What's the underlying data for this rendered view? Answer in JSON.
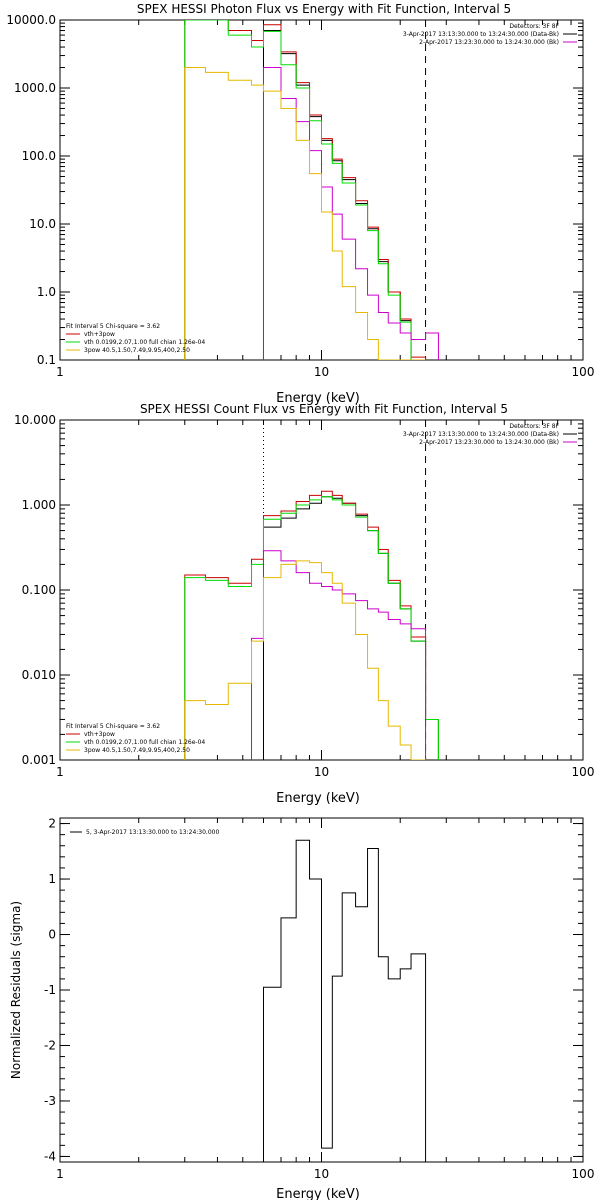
{
  "colors": {
    "black": "#000000",
    "red": "#cc0000",
    "green": "#00dd00",
    "magenta": "#cc00cc",
    "yellow": "#e6b800"
  },
  "chart_data": [
    {
      "type": "line",
      "title": "SPEX HESSI Photon Flux vs Energy with Fit Function, Interval 5",
      "xlabel": "Energy (keV)",
      "ylabel": "",
      "xscale": "log",
      "yscale": "log",
      "xlim": [
        1,
        100
      ],
      "ylim": [
        0.1,
        10000
      ],
      "xticks": [
        {
          "v": 1,
          "label": "1"
        },
        {
          "v": 10,
          "label": "10"
        },
        {
          "v": 100,
          "label": "100"
        }
      ],
      "yticks": [
        {
          "v": 0.1,
          "label": "0.1"
        },
        {
          "v": 1,
          "label": "1.0"
        },
        {
          "v": 10,
          "label": "10.0"
        },
        {
          "v": 100,
          "label": "100.0"
        },
        {
          "v": 1000,
          "label": "1000.0"
        },
        {
          "v": 10000,
          "label": "10000.0"
        }
      ],
      "vlines": [
        {
          "x": 6,
          "style": "dotted",
          "color": "black"
        },
        {
          "x": 25,
          "style": "dashed",
          "color": "black"
        }
      ],
      "legend_top_right": [
        {
          "text": "Detectors: 3F 8F",
          "color": "black"
        },
        {
          "text": "3-Apr-2017 13:13:30.000 to 13:24:30.000 (Data-Bk)",
          "color": "black"
        },
        {
          "text": "2-Apr-2017 13:23:30.000 to 13:24:30.000 (Bk)",
          "color": "magenta"
        }
      ],
      "legend_bottom_left": [
        {
          "text": "Fit Interval 5   Chi-square = 3.62",
          "color": "black"
        },
        {
          "text": "vth+3pow",
          "color": "red"
        },
        {
          "text": "vth 0.0199,2.07,1.00  full chian 1.26e-04",
          "color": "green"
        },
        {
          "text": "3pow 40.5,1.50,7.49,9.95,400,2.50",
          "color": "yellow"
        }
      ],
      "edges": [
        3,
        3.6,
        4.4,
        5.4,
        6,
        7,
        8,
        9,
        10,
        11,
        12,
        13.5,
        15,
        16.5,
        18,
        20,
        22,
        25,
        28
      ],
      "series": [
        {
          "color": "black",
          "values": [
            null,
            null,
            null,
            null,
            7000,
            3200,
            1100,
            380,
            170,
            85,
            45,
            20,
            8.5,
            2.8,
            1.0,
            0.38,
            0.095,
            null
          ]
        },
        {
          "color": "red",
          "values": [
            10000,
            10000,
            7000,
            5000,
            8500,
            3400,
            1200,
            400,
            180,
            90,
            48,
            22,
            9,
            3.0,
            1.0,
            0.4,
            0.11,
            null
          ]
        },
        {
          "color": "green",
          "values": [
            10000,
            10000,
            6000,
            4000,
            6800,
            2200,
            1000,
            330,
            150,
            78,
            40,
            19,
            8,
            2.6,
            0.9,
            0.36,
            0.1,
            null
          ]
        },
        {
          "color": "magenta",
          "values": [
            null,
            null,
            null,
            null,
            2000,
            700,
            320,
            120,
            35,
            14,
            6,
            2.2,
            0.9,
            0.5,
            0.35,
            0.25,
            0.2,
            0.25
          ]
        },
        {
          "color": "yellow",
          "values": [
            2000,
            1700,
            1300,
            1100,
            900,
            500,
            170,
            55,
            15,
            4,
            1.2,
            0.5,
            0.2,
            0.1,
            0.1,
            0.1,
            0.1,
            null
          ]
        }
      ]
    },
    {
      "type": "line",
      "title": "SPEX HESSI Count Flux vs Energy with Fit Function, Interval 5",
      "xlabel": "Energy (keV)",
      "ylabel": "",
      "xscale": "log",
      "yscale": "log",
      "xlim": [
        1,
        100
      ],
      "ylim": [
        0.001,
        10
      ],
      "xticks": [
        {
          "v": 1,
          "label": "1"
        },
        {
          "v": 10,
          "label": "10"
        },
        {
          "v": 100,
          "label": "100"
        }
      ],
      "yticks": [
        {
          "v": 0.001,
          "label": "0.001"
        },
        {
          "v": 0.01,
          "label": "0.010"
        },
        {
          "v": 0.1,
          "label": "0.100"
        },
        {
          "v": 1,
          "label": "1.000"
        },
        {
          "v": 10,
          "label": "10.000"
        }
      ],
      "vlines": [
        {
          "x": 6,
          "style": "dotted",
          "color": "black"
        },
        {
          "x": 25,
          "style": "dashed",
          "color": "black"
        }
      ],
      "legend_top_right": [
        {
          "text": "Detectors: 3F 8F",
          "color": "black"
        },
        {
          "text": "3-Apr-2017 13:13:30.000 to 13:24:30.000 (Data-Bk)",
          "color": "black"
        },
        {
          "text": "2-Apr-2017 13:23:30.000 to 13:24:30.000 (Bk)",
          "color": "magenta"
        }
      ],
      "legend_bottom_left": [
        {
          "text": "Fit Interval 5   Chi-square = 3.62",
          "color": "black"
        },
        {
          "text": "vth+3pow",
          "color": "red"
        },
        {
          "text": "vth 0.0199,2.07,1.00  full chian 1.26e-04",
          "color": "green"
        },
        {
          "text": "3pow 40.5,1.50,7.49,9.95,400,2.50",
          "color": "yellow"
        }
      ],
      "edges": [
        3,
        3.6,
        4.4,
        5.4,
        6,
        7,
        8,
        9,
        10,
        11,
        12,
        13.5,
        15,
        16.5,
        18,
        20,
        22,
        25,
        28
      ],
      "series": [
        {
          "color": "black",
          "values": [
            null,
            null,
            null,
            null,
            0.55,
            0.7,
            0.9,
            1.05,
            1.25,
            1.2,
            1.05,
            0.75,
            0.5,
            0.27,
            0.12,
            0.06,
            0.025,
            0.003
          ]
        },
        {
          "color": "red",
          "values": [
            0.15,
            0.14,
            0.12,
            0.23,
            0.75,
            0.85,
            1.1,
            1.3,
            1.45,
            1.3,
            1.05,
            0.78,
            0.55,
            0.3,
            0.13,
            0.065,
            0.028,
            0.003
          ]
        },
        {
          "color": "green",
          "values": [
            0.14,
            0.13,
            0.11,
            0.2,
            0.68,
            0.8,
            1.0,
            1.15,
            1.25,
            1.15,
            1.0,
            0.72,
            0.5,
            0.27,
            0.12,
            0.06,
            0.025,
            0.003
          ]
        },
        {
          "color": "magenta",
          "values": [
            null,
            null,
            null,
            0.027,
            0.29,
            0.22,
            0.16,
            0.12,
            0.11,
            0.1,
            0.09,
            0.075,
            0.06,
            0.055,
            0.045,
            0.04,
            0.035,
            null
          ]
        },
        {
          "color": "yellow",
          "values": [
            0.005,
            0.0045,
            0.008,
            0.025,
            0.14,
            0.2,
            0.22,
            0.21,
            0.16,
            0.12,
            0.07,
            0.03,
            0.012,
            0.005,
            0.0025,
            0.0015,
            0.001,
            null
          ]
        }
      ]
    },
    {
      "type": "line",
      "title": "",
      "xlabel": "Energy (keV)",
      "ylabel": "Normalized Residuals (sigma)",
      "xscale": "log",
      "yscale": "linear",
      "xlim": [
        1,
        100
      ],
      "ylim": [
        -4.1,
        2.1
      ],
      "xticks": [
        {
          "v": 1,
          "label": "1"
        },
        {
          "v": 10,
          "label": "10"
        },
        {
          "v": 100,
          "label": "100"
        }
      ],
      "yticks": [
        {
          "v": -4,
          "label": "-4"
        },
        {
          "v": -3,
          "label": "-3"
        },
        {
          "v": -2,
          "label": "-2"
        },
        {
          "v": -1,
          "label": "-1"
        },
        {
          "v": 0,
          "label": "0"
        },
        {
          "v": 1,
          "label": "1"
        },
        {
          "v": 2,
          "label": "2"
        }
      ],
      "vlines": [],
      "legend_top_right": [],
      "legend_bottom_left": [],
      "legend_top_left": [
        {
          "text": "5, 3-Apr-2017 13:13:30.000 to 13:24:30.000",
          "color": "black"
        }
      ],
      "edges": [
        6,
        7,
        8,
        9,
        10,
        11,
        12,
        13.5,
        15,
        16.5,
        18,
        20,
        22,
        25
      ],
      "series": [
        {
          "color": "black",
          "values": [
            -0.95,
            0.3,
            1.7,
            1.0,
            -3.85,
            -0.75,
            0.75,
            0.5,
            1.55,
            -0.4,
            -0.8,
            -0.62,
            -0.35
          ]
        }
      ]
    }
  ]
}
